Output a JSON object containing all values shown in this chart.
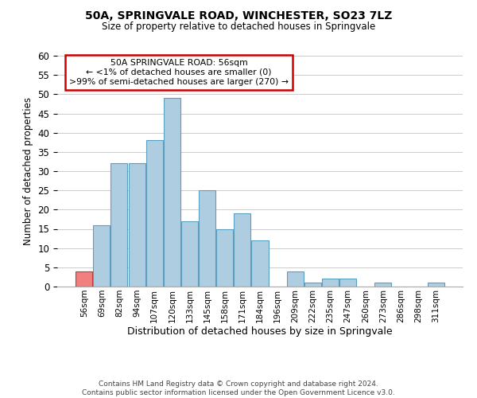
{
  "title": "50A, SPRINGVALE ROAD, WINCHESTER, SO23 7LZ",
  "subtitle": "Size of property relative to detached houses in Springvale",
  "xlabel": "Distribution of detached houses by size in Springvale",
  "ylabel": "Number of detached properties",
  "bin_labels": [
    "56sqm",
    "69sqm",
    "82sqm",
    "94sqm",
    "107sqm",
    "120sqm",
    "133sqm",
    "145sqm",
    "158sqm",
    "171sqm",
    "184sqm",
    "196sqm",
    "209sqm",
    "222sqm",
    "235sqm",
    "247sqm",
    "260sqm",
    "273sqm",
    "286sqm",
    "298sqm",
    "311sqm"
  ],
  "bar_heights": [
    4,
    16,
    32,
    32,
    38,
    49,
    17,
    25,
    15,
    19,
    12,
    0,
    4,
    1,
    2,
    2,
    0,
    1,
    0,
    0,
    1
  ],
  "bar_color": "#aecde1",
  "bar_edge_color": "#5a9fc0",
  "highlight_bar_index": 0,
  "highlight_bar_color": "#f08080",
  "highlight_bar_edge_color": "#c0392b",
  "ylim": [
    0,
    60
  ],
  "yticks": [
    0,
    5,
    10,
    15,
    20,
    25,
    30,
    35,
    40,
    45,
    50,
    55,
    60
  ],
  "annotation_title": "50A SPRINGVALE ROAD: 56sqm",
  "annotation_line1": "← <1% of detached houses are smaller (0)",
  "annotation_line2": ">99% of semi-detached houses are larger (270) →",
  "annotation_box_color": "#ffffff",
  "annotation_box_edge_color": "#cc0000",
  "grid_color": "#cccccc",
  "background_color": "#ffffff",
  "footer_line1": "Contains HM Land Registry data © Crown copyright and database right 2024.",
  "footer_line2": "Contains public sector information licensed under the Open Government Licence v3.0."
}
